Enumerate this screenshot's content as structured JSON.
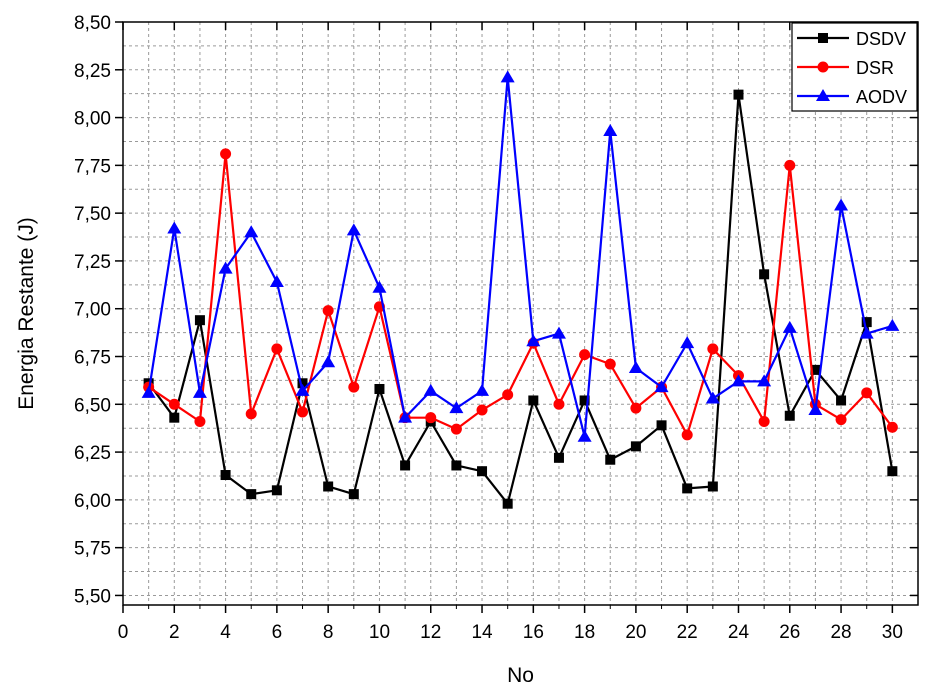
{
  "chart_data": {
    "type": "line",
    "title": "",
    "xlabel": "No",
    "ylabel": "Energia Restante (J)",
    "xlim": [
      0,
      31
    ],
    "ylim": [
      5.45,
      8.5
    ],
    "xticks": [
      0,
      2,
      4,
      6,
      8,
      10,
      12,
      14,
      16,
      18,
      20,
      22,
      24,
      26,
      28,
      30
    ],
    "xtick_labels": [
      "0",
      "2",
      "4",
      "6",
      "8",
      "10",
      "12",
      "14",
      "16",
      "18",
      "20",
      "22",
      "24",
      "26",
      "28",
      "30"
    ],
    "yticks": [
      5.5,
      5.75,
      6.0,
      6.25,
      6.5,
      6.75,
      7.0,
      7.25,
      7.5,
      7.75,
      8.0,
      8.25,
      8.5
    ],
    "ytick_labels": [
      "5,50",
      "5,75",
      "6,00",
      "6,25",
      "6,50",
      "6,75",
      "7,00",
      "7,25",
      "7,50",
      "7,75",
      "8,00",
      "8,25",
      "8,50"
    ],
    "grid": true,
    "legend_position": "top-right",
    "x": [
      1,
      2,
      3,
      4,
      5,
      6,
      7,
      8,
      9,
      10,
      11,
      12,
      13,
      14,
      15,
      16,
      17,
      18,
      19,
      20,
      21,
      22,
      23,
      24,
      25,
      26,
      27,
      28,
      29,
      30
    ],
    "series": [
      {
        "name": "DSDV",
        "color": "#000000",
        "marker": "square",
        "values": [
          6.61,
          6.43,
          6.94,
          6.13,
          6.03,
          6.05,
          6.61,
          6.07,
          6.03,
          6.58,
          6.18,
          6.41,
          6.18,
          6.15,
          5.98,
          6.52,
          6.22,
          6.52,
          6.21,
          6.28,
          6.39,
          6.06,
          6.07,
          8.12,
          7.18,
          6.44,
          6.68,
          6.52,
          6.93,
          6.15
        ]
      },
      {
        "name": "DSR",
        "color": "#ff0000",
        "marker": "circle",
        "values": [
          6.59,
          6.5,
          6.41,
          7.81,
          6.45,
          6.79,
          6.46,
          6.99,
          6.59,
          7.01,
          6.43,
          6.43,
          6.37,
          6.47,
          6.55,
          6.82,
          6.5,
          6.76,
          6.71,
          6.48,
          6.59,
          6.34,
          6.79,
          6.65,
          6.41,
          7.75,
          6.5,
          6.42,
          6.56,
          6.38
        ]
      },
      {
        "name": "AODV",
        "color": "#0000ff",
        "marker": "triangle",
        "values": [
          6.56,
          7.42,
          6.56,
          7.21,
          7.4,
          7.14,
          6.57,
          6.72,
          7.41,
          7.11,
          6.43,
          6.57,
          6.48,
          6.57,
          8.21,
          6.83,
          6.87,
          6.33,
          7.93,
          6.69,
          6.59,
          6.82,
          6.53,
          6.62,
          6.62,
          6.9,
          6.47,
          7.54,
          6.87,
          6.91
        ]
      }
    ]
  }
}
